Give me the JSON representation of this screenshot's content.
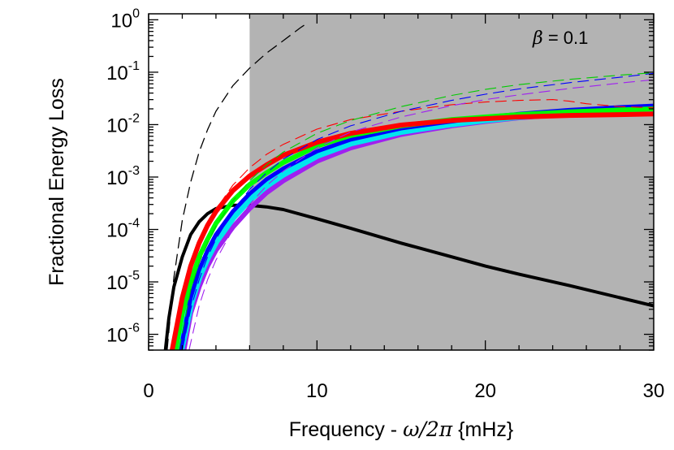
{
  "chart_data": {
    "type": "line",
    "xlabel_prefix": "Frequency - ",
    "xlabel_math": "ω/2π",
    "xlabel_suffix": " {mHz}",
    "ylabel": "Fractional Energy Loss",
    "annotation_symbol": "β",
    "annotation_text": " = 0.1",
    "x_ticks": [
      0,
      10,
      20,
      30
    ],
    "y_ticks": [
      {
        "value": 1,
        "base": "10",
        "exp": "0"
      },
      {
        "value": 0.1,
        "base": "10",
        "exp": "-1"
      },
      {
        "value": 0.01,
        "base": "10",
        "exp": "-2"
      },
      {
        "value": 0.001,
        "base": "10",
        "exp": "-3"
      },
      {
        "value": 0.0001,
        "base": "10",
        "exp": "-4"
      },
      {
        "value": 1e-05,
        "base": "10",
        "exp": "-5"
      },
      {
        "value": 1e-06,
        "base": "10",
        "exp": "-6"
      }
    ],
    "xlim": [
      0,
      30
    ],
    "ylim": [
      5e-07,
      1.3
    ],
    "y_scale": "log",
    "shaded_region": {
      "x": [
        6,
        30
      ],
      "color": "#b3b3b3"
    },
    "series": [
      {
        "color": "#000000",
        "style": "solid",
        "width": 4,
        "x": [
          1.0,
          1.2,
          1.5,
          2,
          2.5,
          3,
          3.5,
          4,
          5,
          6,
          7,
          8,
          10,
          12,
          15,
          18,
          20,
          22,
          25,
          28,
          30
        ],
        "y": [
          5e-07,
          2e-06,
          8e-06,
          3e-05,
          8e-05,
          0.00014,
          0.0002,
          0.00025,
          0.00029,
          0.00029,
          0.00027,
          0.00024,
          0.00016,
          0.000105,
          5.5e-05,
          3e-05,
          2e-05,
          1.4e-05,
          8.5e-06,
          5e-06,
          3.5e-06
        ]
      },
      {
        "color": "#a020f0",
        "style": "solid",
        "width": 6,
        "x": [
          2.1,
          2.5,
          3,
          3.5,
          4,
          5,
          6,
          7,
          8,
          10,
          12,
          15,
          18,
          20,
          22,
          25,
          28,
          30
        ],
        "y": [
          5e-07,
          2.5e-06,
          8e-06,
          2e-05,
          4e-05,
          0.00011,
          0.00025,
          0.0005,
          0.00085,
          0.002,
          0.0036,
          0.0065,
          0.0095,
          0.0115,
          0.0135,
          0.016,
          0.018,
          0.019
        ]
      },
      {
        "color": "#00e5ee",
        "style": "solid",
        "width": 9,
        "x": [
          1.9,
          2.5,
          3,
          3.5,
          4,
          5,
          6,
          7,
          8,
          10,
          12,
          15,
          18,
          20,
          22,
          25,
          28,
          30
        ],
        "y": [
          5e-07,
          4e-06,
          1.3e-05,
          3e-05,
          6e-05,
          0.00017,
          0.00038,
          0.0007,
          0.00115,
          0.0026,
          0.0045,
          0.0075,
          0.0105,
          0.0125,
          0.0145,
          0.017,
          0.019,
          0.02
        ]
      },
      {
        "color": "#0000ff",
        "style": "solid",
        "width": 5,
        "x": [
          1.9,
          2.5,
          3,
          3.5,
          4,
          5,
          6,
          7,
          8,
          10,
          12,
          15,
          18,
          20,
          22,
          25,
          28,
          30
        ],
        "y": [
          5e-07,
          5e-06,
          1.7e-05,
          4e-05,
          8e-05,
          0.00022,
          0.00048,
          0.0009,
          0.00145,
          0.0031,
          0.0052,
          0.0085,
          0.0115,
          0.014,
          0.016,
          0.019,
          0.0215,
          0.023
        ]
      },
      {
        "color": "#00ff00",
        "style": "solid",
        "width": 6,
        "x": [
          1.6,
          2,
          2.5,
          3,
          3.5,
          4,
          5,
          6,
          7,
          8,
          10,
          12,
          15,
          18,
          20,
          22,
          25,
          28,
          30
        ],
        "y": [
          5e-07,
          2.5e-06,
          1e-05,
          3e-05,
          6.5e-05,
          0.00013,
          0.00035,
          0.00072,
          0.0012,
          0.0019,
          0.0039,
          0.0062,
          0.0095,
          0.0125,
          0.014,
          0.0155,
          0.0175,
          0.019,
          0.02
        ]
      },
      {
        "color": "#ff0000",
        "style": "solid",
        "width": 6,
        "x": [
          1.4,
          2,
          2.5,
          3,
          3.5,
          4,
          5,
          6,
          7,
          8,
          10,
          12,
          15,
          18,
          20,
          22,
          25,
          28,
          30
        ],
        "y": [
          5e-07,
          5e-06,
          2e-05,
          5.5e-05,
          0.00012,
          0.00022,
          0.00055,
          0.00105,
          0.0017,
          0.0026,
          0.0046,
          0.0068,
          0.0098,
          0.012,
          0.013,
          0.014,
          0.015,
          0.0155,
          0.016
        ]
      },
      {
        "color": "#000000",
        "style": "dashed",
        "width": 1.3,
        "x": [
          1.1,
          1.5,
          2,
          2.5,
          3,
          3.5,
          4,
          5,
          6,
          7,
          8,
          9,
          9.5
        ],
        "y": [
          5e-07,
          1.2e-05,
          0.00015,
          0.0008,
          0.003,
          0.008,
          0.018,
          0.055,
          0.12,
          0.23,
          0.4,
          0.7,
          0.9
        ]
      },
      {
        "color": "#ff0000",
        "style": "dashed",
        "width": 1.1,
        "x": [
          1.5,
          2,
          2.5,
          3,
          3.5,
          4,
          5,
          6,
          7,
          8,
          10,
          12,
          15,
          18,
          20,
          22,
          24,
          25,
          26,
          28,
          30
        ],
        "y": [
          5e-07,
          5e-06,
          2e-05,
          5.5e-05,
          0.00012,
          0.00024,
          0.0007,
          0.0015,
          0.0027,
          0.0042,
          0.0082,
          0.0125,
          0.018,
          0.024,
          0.027,
          0.029,
          0.03,
          0.028,
          0.025,
          0.022,
          0.021
        ]
      },
      {
        "color": "#00cc00",
        "style": "dashed",
        "width": 1.1,
        "x": [
          1.8,
          2.5,
          3,
          3.5,
          4,
          5,
          6,
          7,
          8,
          10,
          12,
          15,
          18,
          20,
          22,
          25,
          28,
          30
        ],
        "y": [
          5e-07,
          7e-06,
          2.3e-05,
          5.5e-05,
          0.000115,
          0.00035,
          0.00085,
          0.0017,
          0.003,
          0.0068,
          0.012,
          0.022,
          0.036,
          0.047,
          0.058,
          0.073,
          0.088,
          0.098
        ]
      },
      {
        "color": "#0000ff",
        "style": "dashed",
        "width": 1.1,
        "x": [
          2.0,
          2.5,
          3,
          3.5,
          4,
          5,
          6,
          7,
          8,
          10,
          12,
          15,
          18,
          20,
          22,
          25,
          28,
          30
        ],
        "y": [
          5e-07,
          3e-06,
          1.1e-05,
          3e-05,
          6.5e-05,
          0.00022,
          0.00058,
          0.0012,
          0.0022,
          0.0052,
          0.0095,
          0.018,
          0.029,
          0.038,
          0.048,
          0.063,
          0.08,
          0.095
        ]
      },
      {
        "color": "#a020f0",
        "style": "dashed",
        "width": 1.1,
        "x": [
          2.4,
          3,
          3.5,
          4,
          5,
          6,
          7,
          8,
          10,
          12,
          15,
          18,
          20,
          22,
          25,
          28,
          30
        ],
        "y": [
          5e-07,
          3.5e-06,
          1.1e-05,
          2.6e-05,
          0.0001,
          0.0003,
          0.00068,
          0.0013,
          0.0036,
          0.0072,
          0.014,
          0.023,
          0.03,
          0.037,
          0.049,
          0.062,
          0.072
        ]
      }
    ]
  }
}
